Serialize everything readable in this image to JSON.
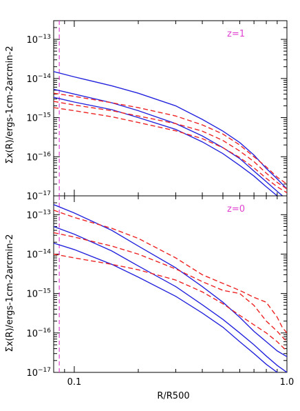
{
  "chart_data": [
    {
      "type": "line",
      "panel": "top",
      "annotation": "z=1",
      "xscale": "log",
      "yscale": "log",
      "xlim": [
        0.08,
        1.0
      ],
      "ylim": [
        1e-17,
        3e-13
      ],
      "ylabel": "Σx(R)/ergs-1cm-2arcmin-2",
      "vline_x": 0.085,
      "series": [
        {
          "style": "solid",
          "color": "#2222dd",
          "x": [
            0.08,
            0.1,
            0.15,
            0.2,
            0.3,
            0.4,
            0.5,
            0.6,
            0.7,
            0.8,
            0.9,
            1.0
          ],
          "y": [
            1.5e-14,
            1.1e-14,
            6.5e-15,
            4.2e-15,
            2e-15,
            9e-16,
            4.5e-16,
            2.3e-16,
            1.1e-16,
            5e-17,
            2.7e-17,
            1.5e-17
          ]
        },
        {
          "style": "solid",
          "color": "#2222dd",
          "x": [
            0.08,
            0.1,
            0.15,
            0.2,
            0.3,
            0.4,
            0.5,
            0.6,
            0.7,
            0.8,
            0.9,
            1.0
          ],
          "y": [
            5.3e-15,
            4e-15,
            2.4e-15,
            1.5e-15,
            7e-16,
            3.4e-16,
            1.7e-16,
            9e-17,
            4.3e-17,
            2.3e-17,
            1.3e-17,
            8e-18
          ]
        },
        {
          "style": "solid",
          "color": "#2222dd",
          "x": [
            0.08,
            0.1,
            0.15,
            0.2,
            0.3,
            0.4,
            0.5,
            0.6,
            0.7,
            0.8,
            0.9,
            1.0
          ],
          "y": [
            3.3e-15,
            2.5e-15,
            1.6e-15,
            1e-15,
            5e-16,
            2.4e-16,
            1.2e-16,
            6e-17,
            3.2e-17,
            1.7e-17,
            1e-17,
            6e-18
          ]
        },
        {
          "style": "dash",
          "color": "#ee2222",
          "x": [
            0.08,
            0.1,
            0.15,
            0.2,
            0.3,
            0.4,
            0.5,
            0.6,
            0.7,
            0.8,
            0.9,
            1.0
          ],
          "y": [
            4.2e-15,
            3.5e-15,
            2.4e-15,
            1.8e-15,
            1.1e-15,
            6.5e-16,
            3.8e-16,
            2e-16,
            1e-16,
            5.5e-17,
            3e-17,
            2e-17
          ]
        },
        {
          "style": "dash",
          "color": "#ee2222",
          "x": [
            0.08,
            0.1,
            0.15,
            0.2,
            0.3,
            0.4,
            0.5,
            0.6,
            0.7,
            0.8,
            0.9,
            1.0
          ],
          "y": [
            2.6e-15,
            2.1e-15,
            1.5e-15,
            1.1e-15,
            7e-16,
            4.5e-16,
            2.6e-16,
            1.4e-16,
            7.5e-17,
            3.8e-17,
            2.2e-17,
            1.5e-17
          ]
        },
        {
          "style": "dash",
          "color": "#ee2222",
          "x": [
            0.08,
            0.1,
            0.15,
            0.2,
            0.3,
            0.4,
            0.5,
            0.6,
            0.7,
            0.8,
            0.9,
            1.0
          ],
          "y": [
            1.8e-15,
            1.5e-15,
            1.05e-15,
            7.5e-16,
            4.6e-16,
            2.9e-16,
            1.7e-16,
            9.5e-17,
            5.2e-17,
            2.8e-17,
            1.7e-17,
            1.2e-17
          ]
        }
      ]
    },
    {
      "type": "line",
      "panel": "bottom",
      "annotation": "z=0",
      "xscale": "log",
      "yscale": "log",
      "xlim": [
        0.08,
        1.0
      ],
      "ylim": [
        1e-17,
        3e-13
      ],
      "xlabel": "R/R500",
      "ylabel": "Σx(R)/ergs-1cm-2arcmin-2",
      "xticklabels": [
        "0.1",
        "1.0"
      ],
      "vline_x": 0.085,
      "series": [
        {
          "style": "solid",
          "color": "#2222dd",
          "x": [
            0.08,
            0.1,
            0.15,
            0.2,
            0.3,
            0.4,
            0.5,
            0.6,
            0.7,
            0.8,
            0.9,
            1.0
          ],
          "y": [
            1.8e-13,
            1.1e-13,
            4e-14,
            1.6e-14,
            4.5e-15,
            1.5e-15,
            6e-16,
            2.5e-16,
            1.1e-16,
            6e-17,
            3.5e-17,
            2.5e-17
          ]
        },
        {
          "style": "solid",
          "color": "#2222dd",
          "x": [
            0.08,
            0.1,
            0.15,
            0.2,
            0.3,
            0.4,
            0.5,
            0.6,
            0.7,
            0.8,
            0.9,
            1.0
          ],
          "y": [
            5e-14,
            3.2e-14,
            1.2e-14,
            5e-15,
            1.5e-15,
            5.2e-16,
            2.2e-16,
            1e-16,
            5e-17,
            2.6e-17,
            1.5e-17,
            1e-17
          ]
        },
        {
          "style": "solid",
          "color": "#2222dd",
          "x": [
            0.08,
            0.1,
            0.15,
            0.2,
            0.3,
            0.4,
            0.5,
            0.6,
            0.7,
            0.8,
            0.9,
            1.0
          ],
          "y": [
            1.9e-14,
            1.3e-14,
            5.5e-15,
            2.6e-15,
            8.5e-16,
            3.2e-16,
            1.4e-16,
            6e-17,
            3e-17,
            1.6e-17,
            1e-17,
            6e-18
          ]
        },
        {
          "style": "dash",
          "color": "#ee2222",
          "x": [
            0.08,
            0.1,
            0.15,
            0.2,
            0.3,
            0.4,
            0.5,
            0.6,
            0.7,
            0.8,
            0.9,
            0.95,
            1.0
          ],
          "y": [
            1.3e-13,
            8.5e-14,
            4.5e-14,
            2.5e-14,
            8e-15,
            3e-15,
            1.8e-15,
            1.2e-15,
            8e-16,
            6e-16,
            2.5e-16,
            1.4e-16,
            1e-16
          ]
        },
        {
          "style": "dash",
          "color": "#ee2222",
          "x": [
            0.08,
            0.1,
            0.15,
            0.2,
            0.3,
            0.4,
            0.5,
            0.6,
            0.7,
            0.8,
            0.9,
            0.95,
            1.0
          ],
          "y": [
            3.5e-14,
            2.7e-14,
            1.6e-14,
            1e-14,
            4.2e-15,
            2e-15,
            1.2e-15,
            1e-15,
            5e-16,
            2e-16,
            1.1e-16,
            8e-17,
            6e-17
          ]
        },
        {
          "style": "dash",
          "color": "#ee2222",
          "x": [
            0.08,
            0.1,
            0.15,
            0.2,
            0.3,
            0.4,
            0.5,
            0.6,
            0.7,
            0.8,
            0.9,
            0.95,
            1.0
          ],
          "y": [
            1e-14,
            8e-15,
            5.5e-15,
            4e-15,
            2.2e-15,
            1.1e-15,
            5.5e-16,
            2.8e-16,
            1.6e-16,
            1e-16,
            6e-17,
            4.5e-17,
            3.5e-17
          ]
        }
      ]
    }
  ],
  "colors": {
    "vline": "#e040d0",
    "annotation": "#e040d0",
    "solid": "#2222dd",
    "dash": "#ee2222"
  }
}
